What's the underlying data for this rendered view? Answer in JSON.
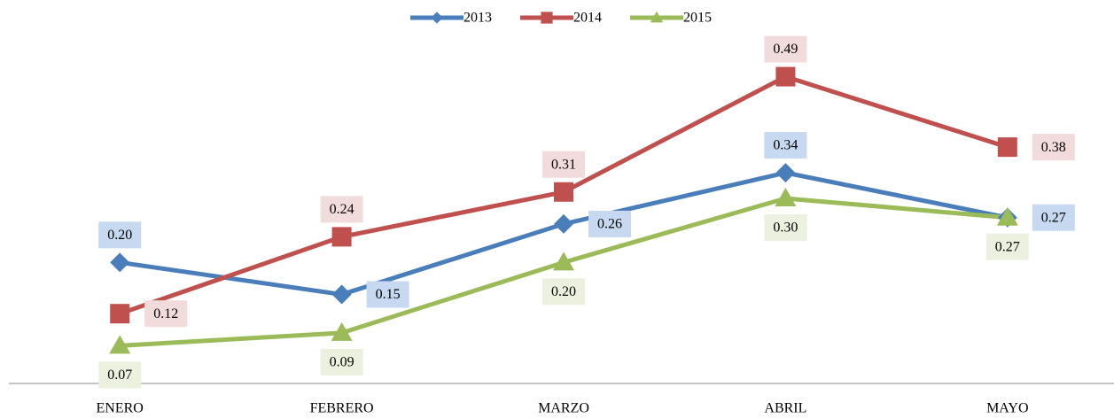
{
  "chart_data": {
    "type": "line",
    "categories": [
      "ENERO",
      "FEBRERO",
      "MARZO",
      "ABRIL",
      "MAYO"
    ],
    "series": [
      {
        "name": "2013",
        "color": "#4a7ebb",
        "marker": "diamond",
        "label_bg": "#c6d9f1",
        "values": [
          0.2,
          0.15,
          0.26,
          0.34,
          0.27
        ],
        "value_labels": [
          "0.20",
          "0.15",
          "0.26",
          "0.34",
          "0.27"
        ]
      },
      {
        "name": "2014",
        "color": "#c0504d",
        "marker": "square",
        "label_bg": "#f2dcdb",
        "values": [
          0.12,
          0.24,
          0.31,
          0.49,
          0.38
        ],
        "value_labels": [
          "0.12",
          "0.24",
          "0.31",
          "0.49",
          "0.38"
        ]
      },
      {
        "name": "2015",
        "color": "#9bbb59",
        "marker": "triangle",
        "label_bg": "#ebf1de",
        "values": [
          0.07,
          0.09,
          0.2,
          0.3,
          0.27
        ],
        "value_labels": [
          "0.07",
          "0.09",
          "0.20",
          "0.30",
          "0.27"
        ]
      }
    ],
    "ylim": [
      0,
      0.6
    ],
    "legend": "top"
  }
}
